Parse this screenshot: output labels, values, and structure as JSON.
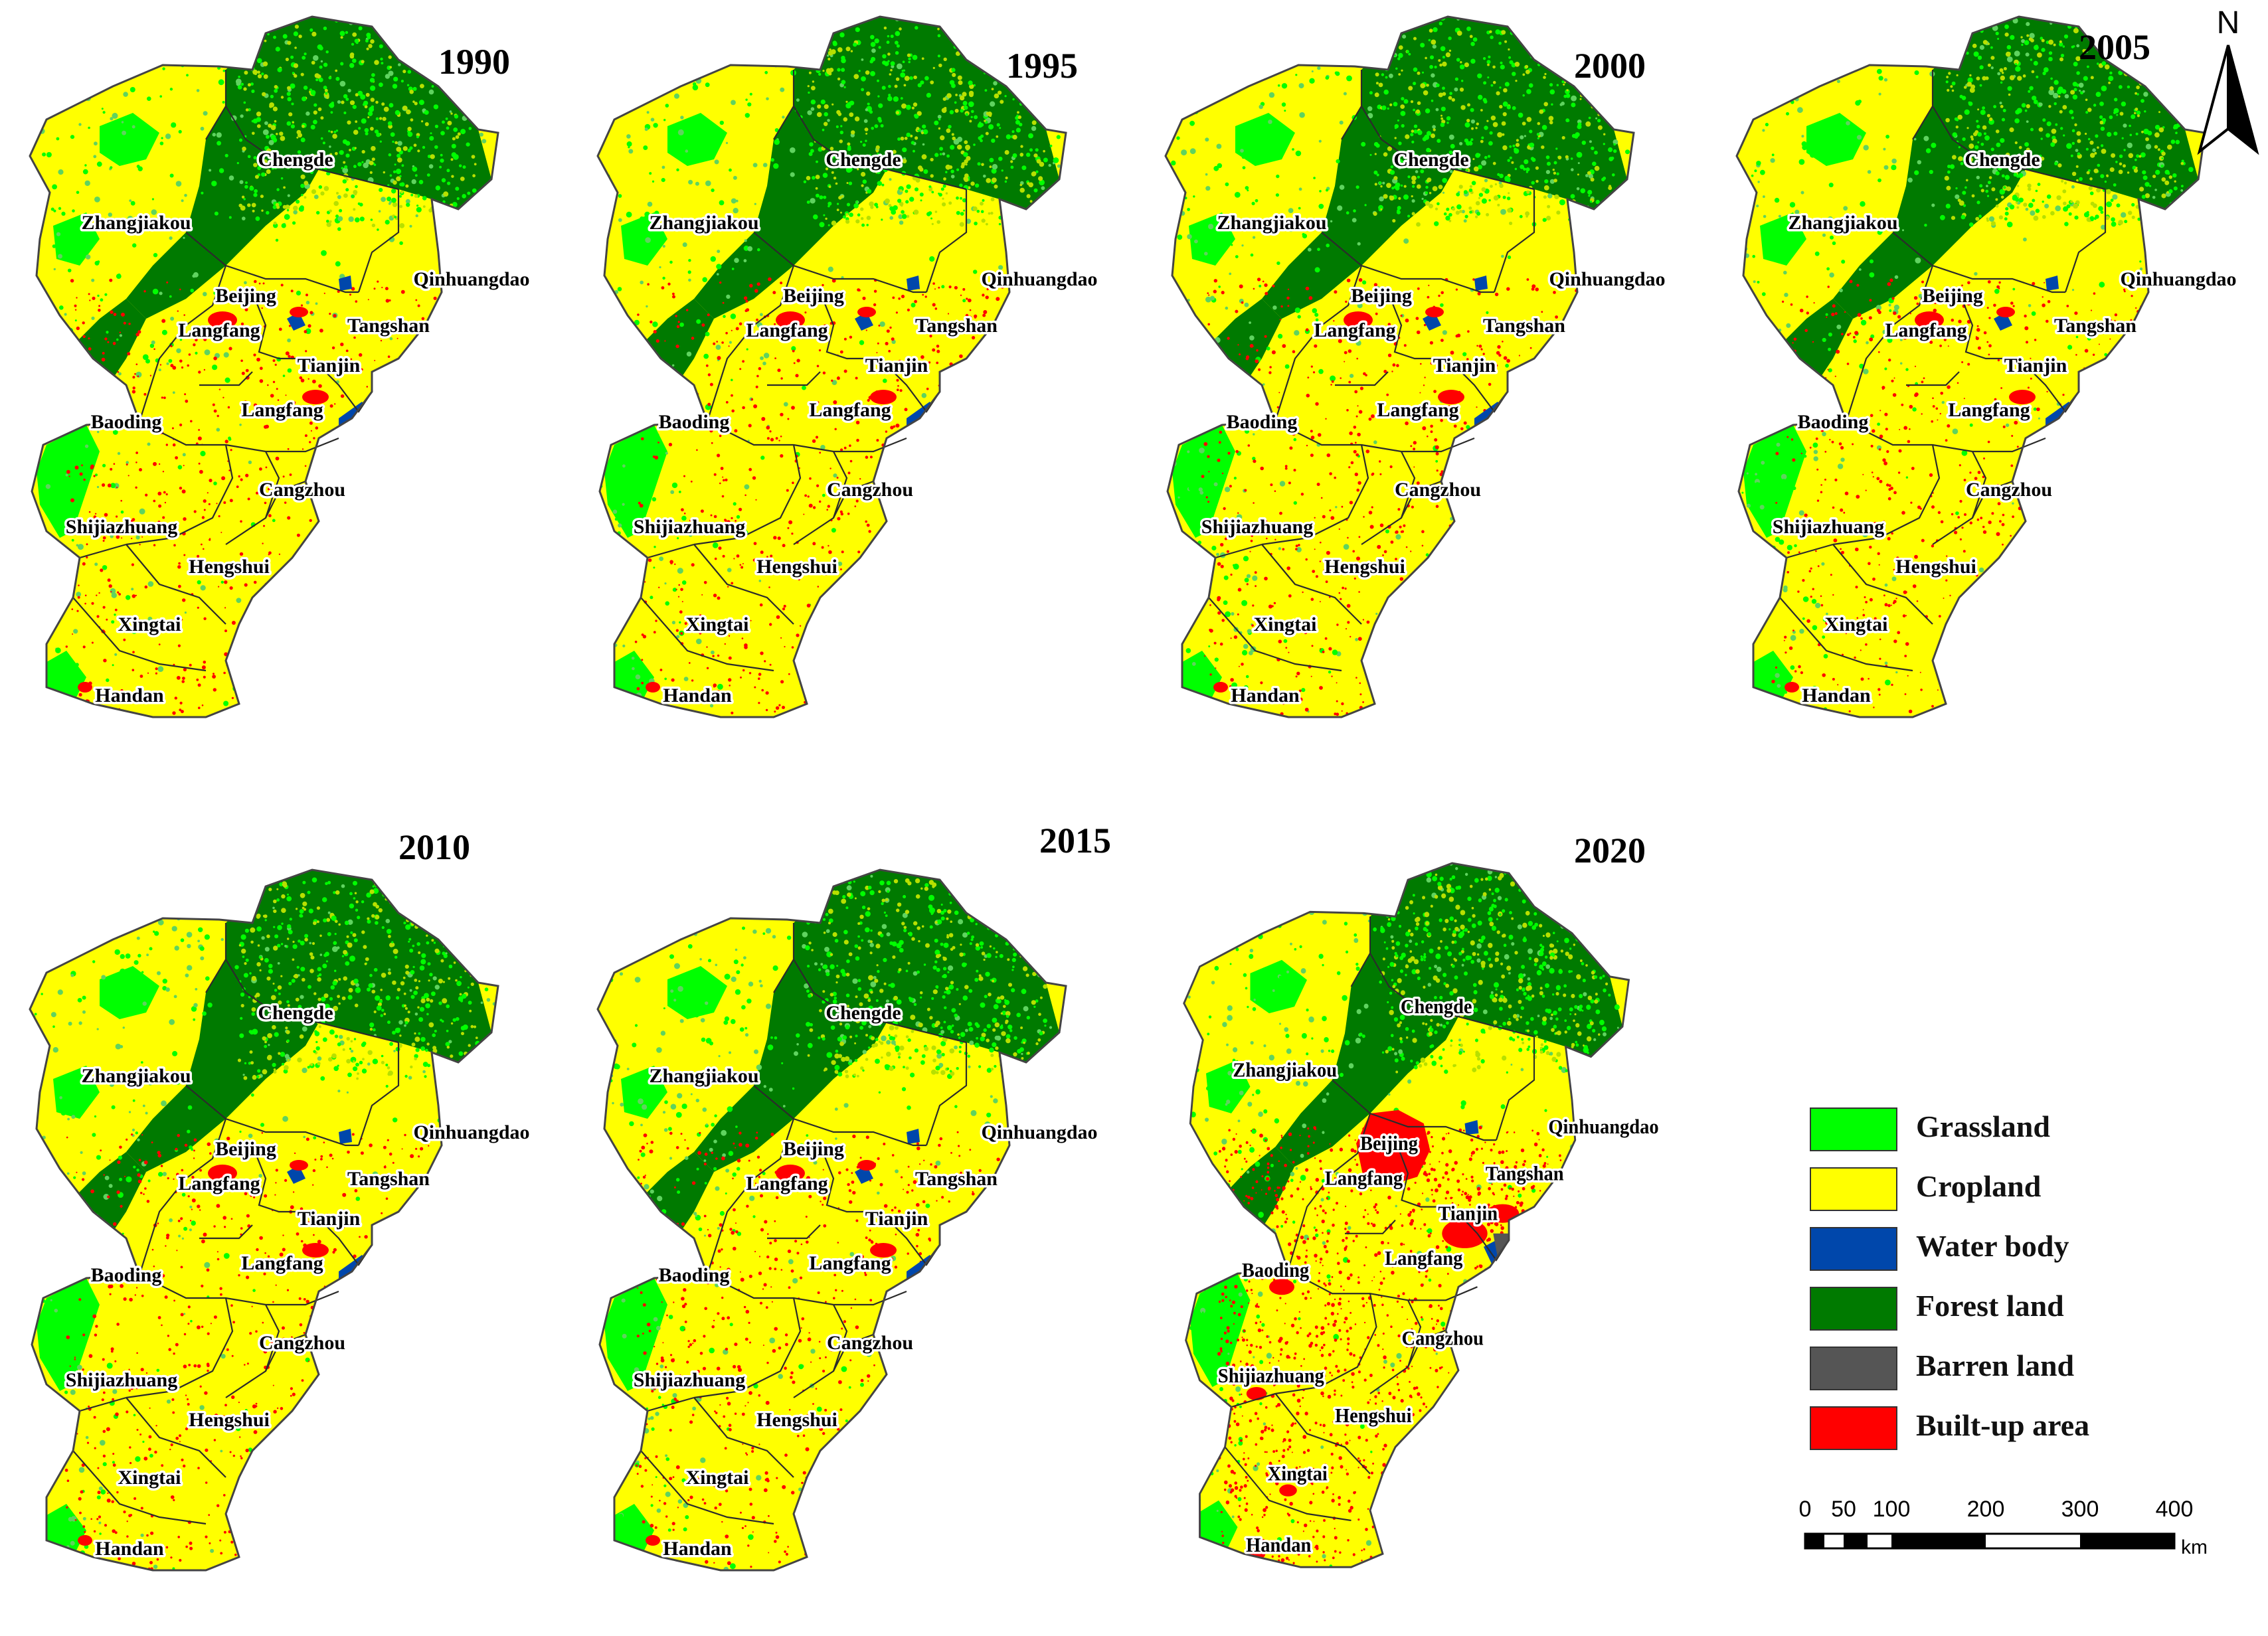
{
  "panels": [
    {
      "year": "1990",
      "variant": "early"
    },
    {
      "year": "1995",
      "variant": "early"
    },
    {
      "year": "2000",
      "variant": "early"
    },
    {
      "year": "2005",
      "variant": "early"
    },
    {
      "year": "2010",
      "variant": "early"
    },
    {
      "year": "2015",
      "variant": "early"
    },
    {
      "year": "2020",
      "variant": "late"
    }
  ],
  "cities": {
    "chengde": "Chengde",
    "zhangjiakou": "Zhangjiakou",
    "qinhuangdao": "Qinhuangdao",
    "beijing": "Beijing",
    "langfang_north": "Langfang",
    "tangshan": "Tangshan",
    "tianjin": "Tianjin",
    "baoding": "Baoding",
    "langfang_south": "Langfang",
    "cangzhou": "Cangzhou",
    "shijiazhuang": "Shijiazhuang",
    "hengshui": "Hengshui",
    "xingtai": "Xingtai",
    "handan": "Handan"
  },
  "legend": [
    {
      "label": "Grassland",
      "color": "#00ff00"
    },
    {
      "label": "Cropland",
      "color": "#ffff00"
    },
    {
      "label": "Water body",
      "color": "#0047ab"
    },
    {
      "label": "Forest land",
      "color": "#007a00"
    },
    {
      "label": "Barren land",
      "color": "#555555"
    },
    {
      "label": "Built-up area",
      "color": "#ff0000"
    }
  ],
  "scale": {
    "ticks": [
      "0",
      "50",
      "100",
      "200",
      "300",
      "400"
    ],
    "unit": "km"
  },
  "north_label": "N"
}
